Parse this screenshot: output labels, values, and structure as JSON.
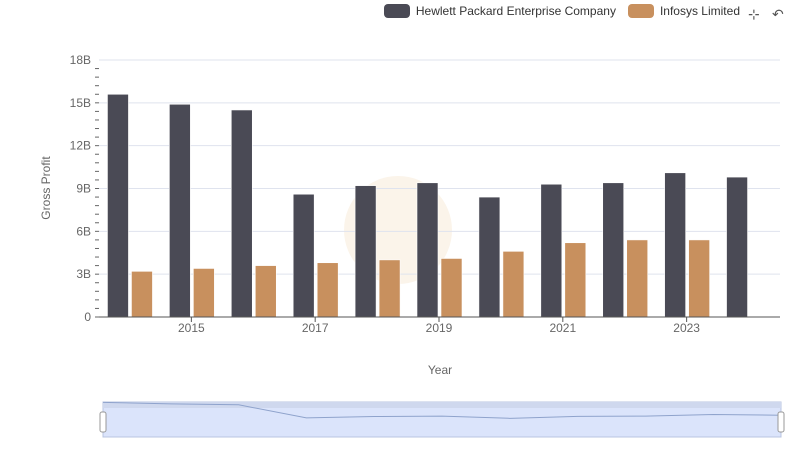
{
  "chart_data": {
    "type": "bar",
    "title": "",
    "xlabel": "Year",
    "ylabel": "Gross Profit",
    "ylim": [
      0,
      18
    ],
    "yticks": [
      "0",
      "3B",
      "6B",
      "9B",
      "12B",
      "15B",
      "18B"
    ],
    "ytick_values": [
      0,
      3,
      6,
      9,
      12,
      15,
      18
    ],
    "categories": [
      "2014",
      "2015",
      "2016",
      "2017",
      "2018",
      "2019",
      "2020",
      "2021",
      "2022",
      "2023",
      "2024"
    ],
    "xtick_labels": [
      "2015",
      "2017",
      "2019",
      "2021",
      "2023"
    ],
    "grid": true,
    "legend_position": "top-right",
    "series": [
      {
        "name": "Hewlett Packard Enterprise Company",
        "color": "#4a4a55",
        "values": [
          15.6,
          14.9,
          14.5,
          8.6,
          9.2,
          9.4,
          8.4,
          9.3,
          9.4,
          10.1,
          9.8
        ]
      },
      {
        "name": "Infosys Limited",
        "color": "#c8905e",
        "values": [
          3.2,
          3.4,
          3.6,
          3.8,
          4.0,
          4.1,
          4.6,
          5.2,
          5.4,
          5.4,
          null
        ]
      }
    ]
  },
  "toolbar": {
    "zoom_icon": "crosshair-zoom-icon",
    "reset_icon": "reset-zoom-icon"
  }
}
